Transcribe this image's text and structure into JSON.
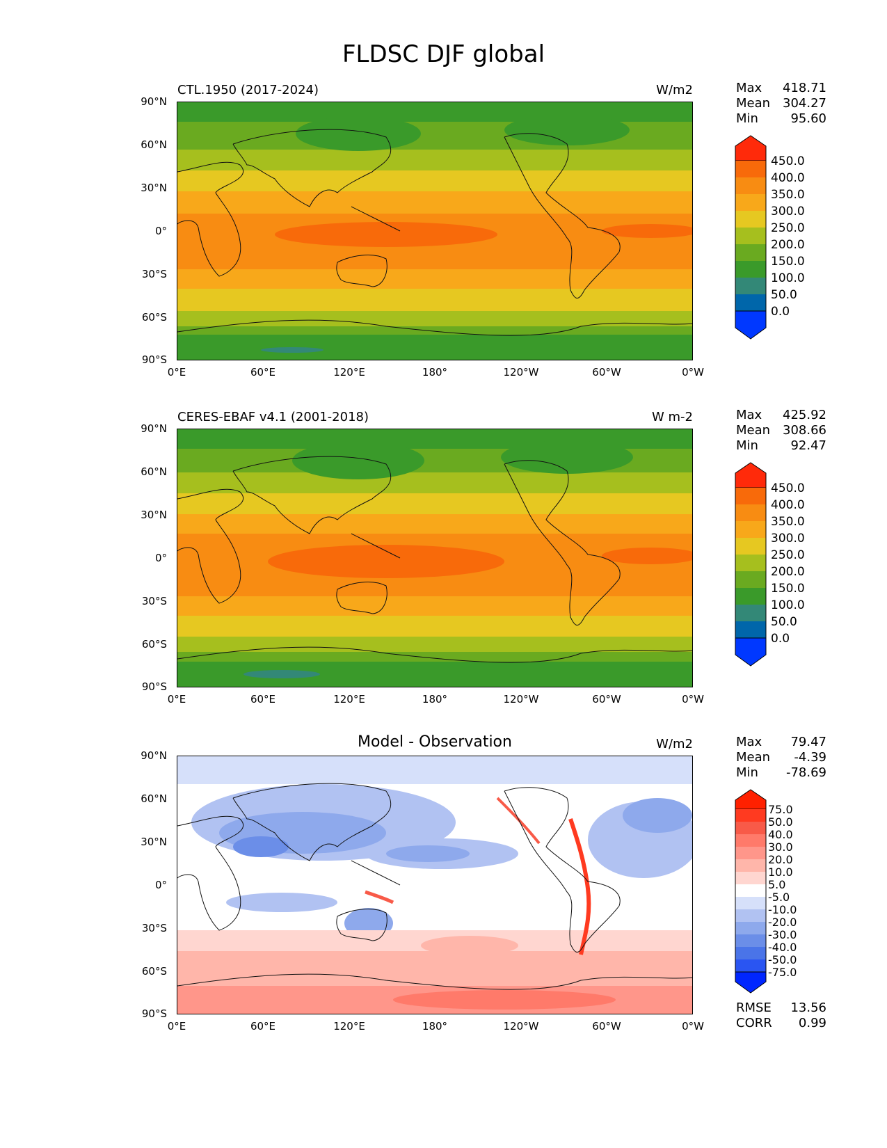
{
  "suptitle": "FLDSC DJF global",
  "axes": {
    "lat_labels": [
      "90°N",
      "60°N",
      "30°N",
      "0°",
      "30°S",
      "60°S",
      "90°S"
    ],
    "lon_labels": [
      "0°E",
      "60°E",
      "120°E",
      "180°",
      "120°W",
      "60°W",
      "0°W"
    ]
  },
  "panels": [
    {
      "title_left": "CTL.1950 (2017-2024)",
      "title_right": "W/m2",
      "stats": {
        "max_label": "Max",
        "max": "418.71",
        "mean_label": "Mean",
        "mean": "304.27",
        "min_label": "Min",
        "min": "95.60"
      },
      "colorbar": {
        "labels": [
          "450.0",
          "400.0",
          "350.0",
          "300.0",
          "250.0",
          "200.0",
          "150.0",
          "100.0",
          "50.0",
          "0.0"
        ]
      }
    },
    {
      "title_left": "CERES-EBAF v4.1 (2001-2018)",
      "title_right": "W m-2",
      "stats": {
        "max_label": "Max",
        "max": "425.92",
        "mean_label": "Mean",
        "mean": "308.66",
        "min_label": "Min",
        "min": "92.47"
      },
      "colorbar": {
        "labels": [
          "450.0",
          "400.0",
          "350.0",
          "300.0",
          "250.0",
          "200.0",
          "150.0",
          "100.0",
          "50.0",
          "0.0"
        ]
      }
    },
    {
      "title_center": "Model - Observation",
      "title_right": "W/m2",
      "stats": {
        "max_label": "Max",
        "max": "79.47",
        "mean_label": "Mean",
        "mean": "-4.39",
        "min_label": "Min",
        "min": "-78.69",
        "rmse_label": "RMSE",
        "rmse": "13.56",
        "corr_label": "CORR",
        "corr": "0.99"
      },
      "colorbar": {
        "labels": [
          "75.0",
          "50.0",
          "40.0",
          "30.0",
          "20.0",
          "10.0",
          "5.0",
          "-5.0",
          "-10.0",
          "-20.0",
          "-30.0",
          "-40.0",
          "-50.0",
          "-75.0"
        ]
      }
    }
  ],
  "colors": {
    "abs_scale": [
      "#0038ff",
      "#0066aa",
      "#338877",
      "#3a9a2a",
      "#6aaa20",
      "#a6bf1e",
      "#e6c821",
      "#f8a81a",
      "#f88c12",
      "#f86a0a",
      "#ff2a0a"
    ],
    "diff_scale": [
      "#0026ff",
      "#2a55f2",
      "#4a74e8",
      "#6b8ee8",
      "#8ea9ec",
      "#b1c2f2",
      "#d6e0fa",
      "#ffffff",
      "#ffd6d0",
      "#ffb6aa",
      "#ff968a",
      "#ff7a6a",
      "#f85a48",
      "#ff3a20",
      "#ff2000"
    ]
  }
}
